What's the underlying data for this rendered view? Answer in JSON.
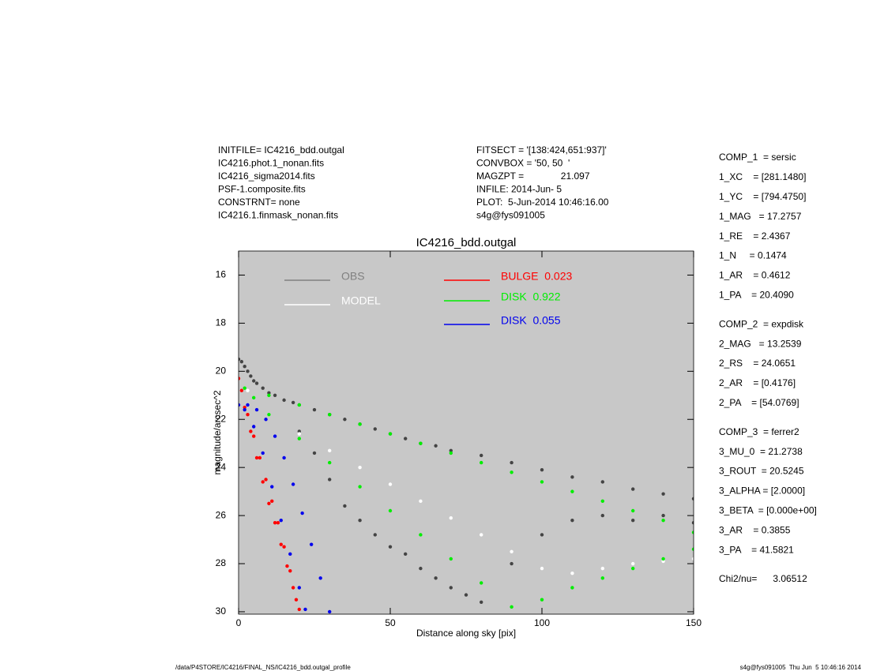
{
  "header": {
    "left": [
      "INITFILE= IC4216_bdd.outgal",
      "IC4216.phot.1_nonan.fits",
      "IC4216_sigma2014.fits",
      "PSF-1.composite.fits",
      "CONSTRNT= none",
      "IC4216.1.finmask_nonan.fits"
    ],
    "middle": [
      "FITSECT = '[138:424,651:937]'",
      "CONVBOX = '50, 50  '",
      "MAGZPT =              21.097",
      "INFILE: 2014-Jun- 5",
      "PLOT:  5-Jun-2014 10:46:16.00",
      "s4g@fys091005"
    ]
  },
  "parameters": [
    [
      "COMP_1  = sersic",
      "1_XC    = [281.1480]",
      "1_YC    = [794.4750]",
      "1_MAG   = 17.2757",
      "1_RE    = 2.4367",
      "1_N     = 0.1474",
      "1_AR    = 0.4612",
      "1_PA    = 20.4090"
    ],
    [
      "COMP_2  = expdisk",
      "2_MAG   = 13.2539",
      "2_RS    = 24.0651",
      "2_AR    = [0.4176]",
      "2_PA    = [54.0769]"
    ],
    [
      "COMP_3  = ferrer2",
      "3_MU_0  = 21.2738",
      "3_ROUT  = 20.5245",
      "3_ALPHA = [2.0000]",
      "3_BETA  = [0.000e+00]",
      "3_AR    = 0.3855",
      "3_PA    = 41.5821"
    ],
    [
      "Chi2/nu=      3.06512"
    ]
  ],
  "footer": {
    "left": "/data/P4STORE/IC4216/FINAL_NS/IC4216_bdd.outgal_profile",
    "right": "s4g@fys091005  Thu Jun  5 10:46:16 2014"
  },
  "chart_data": {
    "type": "scatter",
    "title": "IC4216_bdd.outgal",
    "x_label": "Distance along sky [pix]",
    "y_label": "magnitude/arcsec^2",
    "xlim": [
      0,
      150
    ],
    "xticks": [
      0,
      50,
      100,
      150
    ],
    "ylim": [
      15,
      30.1
    ],
    "y_inverted": true,
    "yticks": [
      16,
      18,
      20,
      22,
      24,
      26,
      28,
      30
    ],
    "background": "#c8c8c8",
    "series": [
      {
        "name": "OBS",
        "color": "#808080",
        "point_color": "#444444",
        "x": [
          0,
          1,
          2,
          3,
          4,
          5,
          6,
          8,
          10,
          12,
          15,
          18,
          20,
          25,
          30,
          35,
          40,
          45,
          50,
          55,
          60,
          65,
          70,
          80,
          90,
          100,
          110,
          120,
          130,
          140,
          150,
          20,
          25,
          30,
          35,
          40,
          45,
          50,
          55,
          60,
          65,
          70,
          75,
          80,
          90,
          100,
          110,
          120,
          130,
          140,
          150
        ],
        "values": [
          19.5,
          19.6,
          19.8,
          20.0,
          20.2,
          20.4,
          20.5,
          20.7,
          20.9,
          21.0,
          21.2,
          21.3,
          21.4,
          21.6,
          21.8,
          22.0,
          22.2,
          22.4,
          22.6,
          22.8,
          23.0,
          23.1,
          23.3,
          23.5,
          23.8,
          24.1,
          24.4,
          24.6,
          24.9,
          25.1,
          25.3,
          22.5,
          23.4,
          24.5,
          25.6,
          26.2,
          26.8,
          27.3,
          27.6,
          28.2,
          28.6,
          29.0,
          29.3,
          29.6,
          28.0,
          26.8,
          26.2,
          26.0,
          26.2,
          26.0,
          26.3
        ]
      },
      {
        "name": "MODEL",
        "color": "#ffffff",
        "point_color": "#ffffff",
        "x": [
          3,
          10,
          20,
          30,
          40,
          50,
          60,
          70,
          80,
          90,
          100,
          110,
          120,
          130,
          140,
          150
        ],
        "values": [
          20.8,
          21.8,
          22.6,
          23.3,
          24.0,
          24.7,
          25.4,
          26.1,
          26.8,
          27.5,
          28.2,
          28.4,
          28.2,
          28.0,
          27.9,
          27.8
        ]
      },
      {
        "name": "BULGE  0.023",
        "color": "#ff0000",
        "point_color": "#ff0000",
        "x": [
          0,
          1,
          3,
          5,
          7,
          9,
          11,
          13,
          15,
          17,
          19,
          2,
          4,
          6,
          8,
          10,
          12,
          14,
          16,
          18,
          20
        ],
        "values": [
          20.3,
          20.8,
          21.8,
          22.7,
          23.6,
          24.5,
          25.4,
          26.3,
          27.3,
          28.3,
          29.5,
          21.5,
          22.5,
          23.6,
          24.6,
          25.5,
          26.3,
          27.2,
          28.1,
          29.0,
          29.9
        ]
      },
      {
        "name": "DISK  0.922",
        "color": "#00ee00",
        "point_color": "#00ee00",
        "x": [
          2,
          10,
          20,
          30,
          40,
          50,
          60,
          70,
          80,
          90,
          100,
          110,
          120,
          130,
          140,
          150,
          5,
          10,
          20,
          30,
          40,
          50,
          60,
          70,
          80,
          90,
          100,
          110,
          120,
          130,
          140,
          150
        ],
        "values": [
          20.7,
          21.0,
          21.4,
          21.8,
          22.2,
          22.6,
          23.0,
          23.4,
          23.8,
          24.2,
          24.6,
          25.0,
          25.4,
          25.8,
          26.2,
          26.7,
          21.1,
          21.8,
          22.8,
          23.8,
          24.8,
          25.8,
          26.8,
          27.8,
          28.8,
          29.8,
          29.5,
          29.0,
          28.6,
          28.2,
          27.8,
          27.4
        ]
      },
      {
        "name": "DISK  0.055",
        "color": "#0000ee",
        "point_color": "#0000ee",
        "x": [
          0,
          3,
          6,
          9,
          12,
          15,
          18,
          21,
          24,
          27,
          30,
          2,
          5,
          8,
          11,
          14,
          17,
          20,
          22
        ],
        "values": [
          21.4,
          21.4,
          21.6,
          22.0,
          22.7,
          23.6,
          24.7,
          25.9,
          27.2,
          28.6,
          30.0,
          21.6,
          22.3,
          23.4,
          24.8,
          26.2,
          27.6,
          29.0,
          29.9
        ]
      }
    ]
  }
}
